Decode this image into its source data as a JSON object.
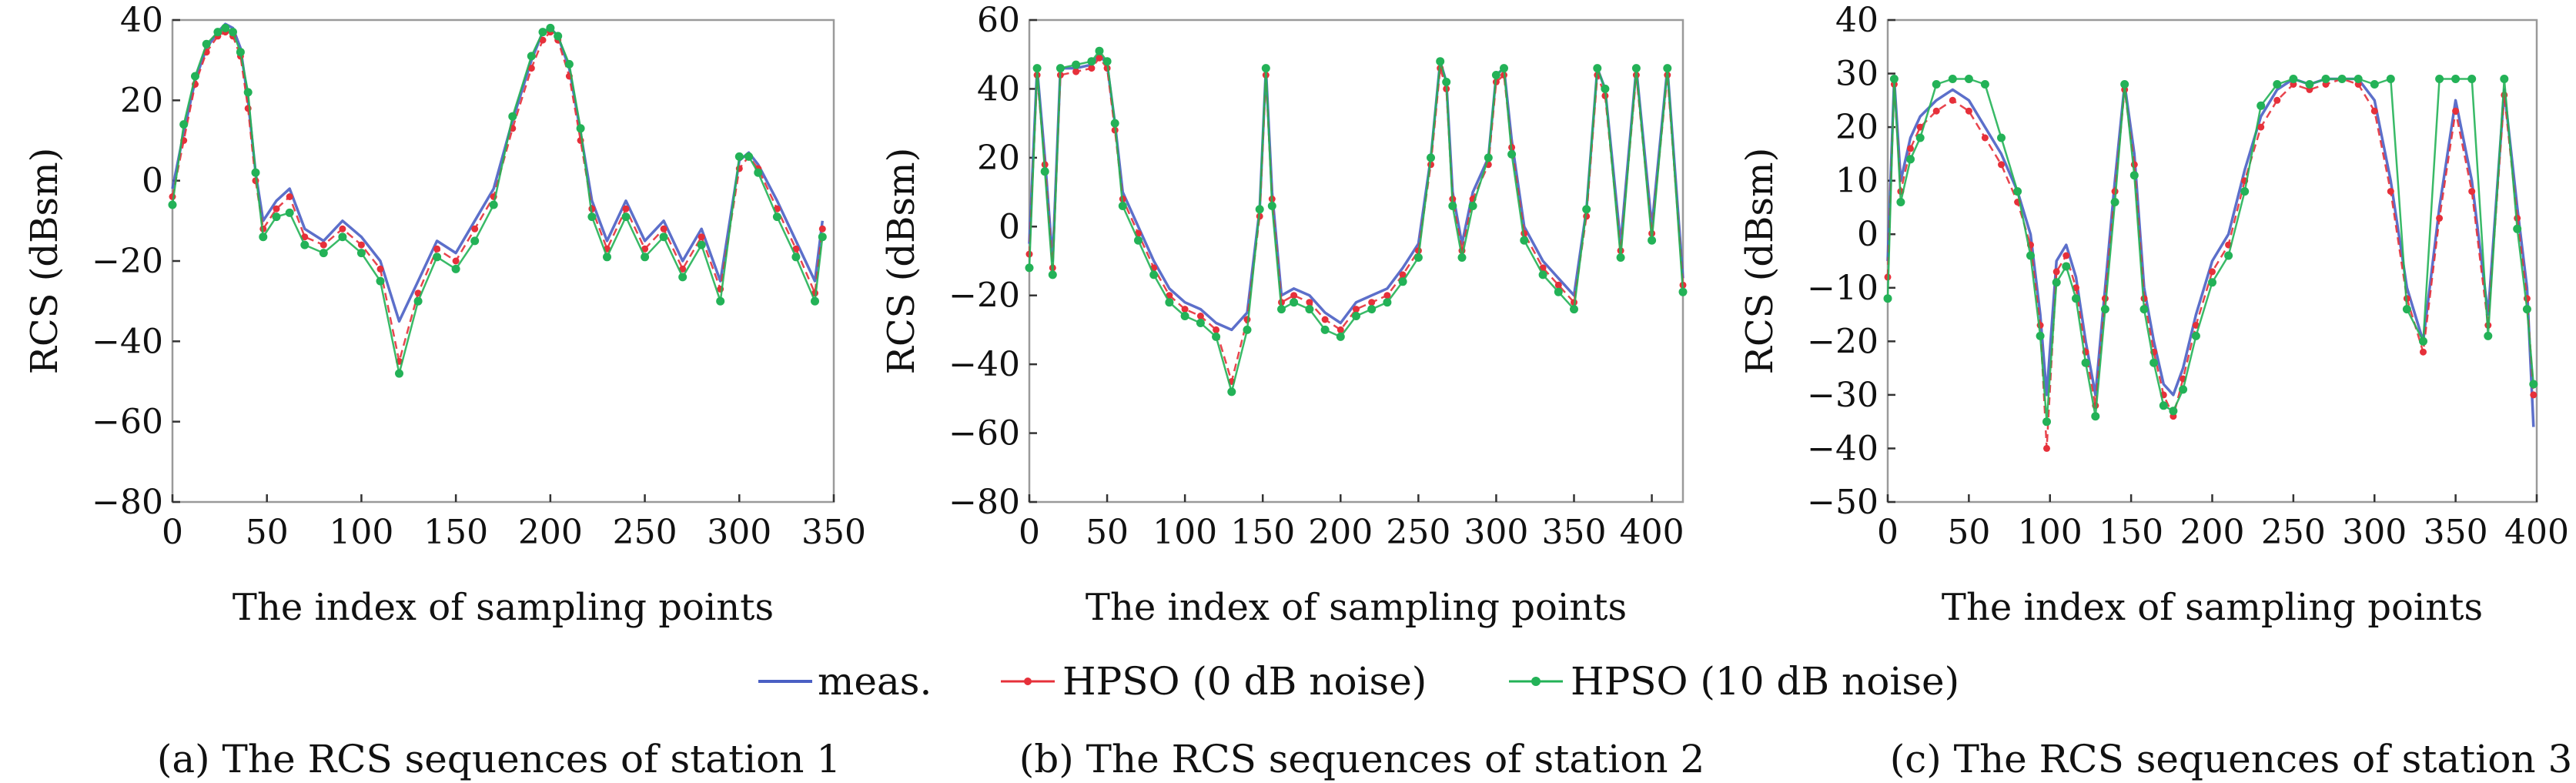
{
  "legend": [
    {
      "name": "meas.",
      "color": "#4a5fc4",
      "marker": "none"
    },
    {
      "name": "HPSO (0 dB noise)",
      "color": "#e6303a",
      "marker": "dot"
    },
    {
      "name": "HPSO (10 dB noise)",
      "color": "#23b257",
      "marker": "plus"
    }
  ],
  "chart_data": [
    {
      "type": "line",
      "caption": "(a) The RCS sequences of station 1",
      "xlabel": "The index of sampling points",
      "ylabel": "RCS (dBsm)",
      "xlim": [
        0,
        350
      ],
      "ylim": [
        -80,
        40
      ],
      "xticks": [
        "0",
        "50",
        "100",
        "150",
        "200",
        "250",
        "300",
        "350"
      ],
      "yticks": [
        "40",
        "20",
        "0",
        "−20",
        "−40",
        "−60",
        "−80"
      ],
      "x_end": 344,
      "series": [
        {
          "name": "meas.",
          "x": [
            0,
            6,
            12,
            18,
            24,
            28,
            32,
            36,
            40,
            44,
            48,
            55,
            62,
            70,
            80,
            90,
            100,
            110,
            120,
            130,
            140,
            150,
            160,
            170,
            180,
            190,
            196,
            200,
            204,
            210,
            216,
            222,
            230,
            240,
            250,
            260,
            270,
            280,
            290,
            300,
            305,
            310,
            320,
            330,
            340,
            344
          ],
          "y": [
            -2,
            12,
            25,
            33,
            37,
            39,
            38,
            33,
            20,
            2,
            -10,
            -5,
            -2,
            -12,
            -15,
            -10,
            -14,
            -20,
            -35,
            -25,
            -15,
            -18,
            -10,
            -2,
            15,
            30,
            37,
            38,
            36,
            28,
            12,
            -5,
            -15,
            -5,
            -15,
            -10,
            -20,
            -12,
            -25,
            5,
            7,
            4,
            -5,
            -15,
            -25,
            -10
          ]
        },
        {
          "name": "HPSO (0 dB noise)",
          "x": [
            0,
            6,
            12,
            18,
            24,
            28,
            32,
            36,
            40,
            44,
            48,
            55,
            62,
            70,
            80,
            90,
            100,
            110,
            120,
            130,
            140,
            150,
            160,
            170,
            180,
            190,
            196,
            200,
            204,
            210,
            216,
            222,
            230,
            240,
            250,
            260,
            270,
            280,
            290,
            300,
            305,
            310,
            320,
            330,
            340,
            344
          ],
          "y": [
            -4,
            10,
            24,
            32,
            36,
            37,
            36,
            31,
            18,
            0,
            -12,
            -7,
            -4,
            -14,
            -16,
            -12,
            -16,
            -22,
            -45,
            -28,
            -17,
            -20,
            -12,
            -4,
            13,
            28,
            35,
            37,
            35,
            26,
            10,
            -7,
            -17,
            -7,
            -17,
            -12,
            -22,
            -14,
            -27,
            3,
            6,
            3,
            -7,
            -17,
            -28,
            -12
          ]
        },
        {
          "name": "HPSO (10 dB noise)",
          "x": [
            0,
            6,
            12,
            18,
            24,
            28,
            32,
            36,
            40,
            44,
            48,
            55,
            62,
            70,
            80,
            90,
            100,
            110,
            120,
            130,
            140,
            150,
            160,
            170,
            180,
            190,
            196,
            200,
            204,
            210,
            216,
            222,
            230,
            240,
            250,
            260,
            270,
            280,
            290,
            300,
            305,
            310,
            320,
            330,
            340,
            344
          ],
          "y": [
            -6,
            14,
            26,
            34,
            37,
            38,
            37,
            32,
            22,
            2,
            -14,
            -9,
            -8,
            -16,
            -18,
            -14,
            -18,
            -25,
            -48,
            -30,
            -19,
            -22,
            -15,
            -6,
            16,
            31,
            37,
            38,
            36,
            29,
            13,
            -9,
            -19,
            -9,
            -19,
            -14,
            -24,
            -16,
            -30,
            6,
            6,
            2,
            -9,
            -19,
            -30,
            -14
          ]
        }
      ]
    },
    {
      "type": "line",
      "caption": "(b) The RCS sequences of station 2",
      "xlabel": "The index of sampling points",
      "ylabel": "RCS (dBsm)",
      "xlim": [
        0,
        420
      ],
      "ylim": [
        -80,
        60
      ],
      "xticks": [
        "0",
        "50",
        "100",
        "150",
        "200",
        "250",
        "300",
        "350",
        "400"
      ],
      "yticks": [
        "60",
        "40",
        "20",
        "0",
        "−20",
        "−40",
        "−60",
        "−80"
      ],
      "x_end": 420,
      "series": [
        {
          "name": "meas.",
          "x": [
            0,
            5,
            10,
            15,
            20,
            30,
            40,
            45,
            50,
            55,
            60,
            70,
            80,
            90,
            100,
            110,
            120,
            130,
            140,
            148,
            152,
            156,
            162,
            170,
            180,
            190,
            200,
            210,
            220,
            230,
            240,
            250,
            258,
            264,
            268,
            272,
            278,
            285,
            295,
            300,
            305,
            310,
            318,
            330,
            340,
            350,
            358,
            365,
            370,
            380,
            390,
            400,
            410,
            420
          ],
          "y": [
            -5,
            46,
            20,
            -10,
            46,
            46,
            47,
            50,
            47,
            30,
            10,
            0,
            -10,
            -18,
            -22,
            -24,
            -28,
            -30,
            -25,
            5,
            46,
            10,
            -20,
            -18,
            -20,
            -25,
            -28,
            -22,
            -20,
            -18,
            -12,
            -5,
            20,
            48,
            42,
            10,
            -5,
            10,
            20,
            44,
            46,
            25,
            0,
            -10,
            -15,
            -20,
            5,
            46,
            40,
            -5,
            46,
            0,
            46,
            -15
          ]
        },
        {
          "name": "HPSO (0 dB noise)",
          "x": [
            0,
            5,
            10,
            15,
            20,
            30,
            40,
            45,
            50,
            55,
            60,
            70,
            80,
            90,
            100,
            110,
            120,
            130,
            140,
            148,
            152,
            156,
            162,
            170,
            180,
            190,
            200,
            210,
            220,
            230,
            240,
            250,
            258,
            264,
            268,
            272,
            278,
            285,
            295,
            300,
            305,
            310,
            318,
            330,
            340,
            350,
            358,
            365,
            370,
            380,
            390,
            400,
            410,
            420
          ],
          "y": [
            -8,
            44,
            18,
            -12,
            44,
            45,
            46,
            49,
            46,
            28,
            8,
            -2,
            -12,
            -20,
            -24,
            -26,
            -30,
            -45,
            -27,
            3,
            44,
            8,
            -22,
            -20,
            -22,
            -27,
            -30,
            -24,
            -22,
            -20,
            -14,
            -7,
            18,
            46,
            40,
            8,
            -7,
            8,
            18,
            42,
            44,
            23,
            -2,
            -12,
            -17,
            -22,
            3,
            44,
            38,
            -7,
            44,
            -2,
            44,
            -17
          ]
        },
        {
          "name": "HPSO (10 dB noise)",
          "x": [
            0,
            5,
            10,
            15,
            20,
            30,
            40,
            45,
            50,
            55,
            60,
            70,
            80,
            90,
            100,
            110,
            120,
            130,
            140,
            148,
            152,
            156,
            162,
            170,
            180,
            190,
            200,
            210,
            220,
            230,
            240,
            250,
            258,
            264,
            268,
            272,
            278,
            285,
            295,
            300,
            305,
            310,
            318,
            330,
            340,
            350,
            358,
            365,
            370,
            380,
            390,
            400,
            410,
            420
          ],
          "y": [
            -12,
            46,
            16,
            -14,
            46,
            47,
            48,
            51,
            48,
            30,
            6,
            -4,
            -14,
            -22,
            -26,
            -28,
            -32,
            -48,
            -30,
            5,
            46,
            6,
            -24,
            -22,
            -24,
            -30,
            -32,
            -26,
            -24,
            -22,
            -16,
            -9,
            20,
            48,
            42,
            6,
            -9,
            6,
            20,
            44,
            46,
            21,
            -4,
            -14,
            -19,
            -24,
            5,
            46,
            40,
            -9,
            46,
            -4,
            46,
            -19
          ]
        }
      ]
    },
    {
      "type": "line",
      "caption": "(c) The RCS sequences of station 3",
      "xlabel": "The index of sampling points",
      "ylabel": "RCS (dBsm)",
      "xlim": [
        0,
        400
      ],
      "ylim": [
        -50,
        40
      ],
      "xticks": [
        "0",
        "50",
        "100",
        "150",
        "200",
        "250",
        "300",
        "350",
        "400"
      ],
      "yticks": [
        "40",
        "30",
        "20",
        "10",
        "0",
        "−10",
        "−20",
        "−30",
        "−40",
        "−50"
      ],
      "x_end": 398,
      "series": [
        {
          "name": "meas.",
          "x": [
            0,
            4,
            8,
            14,
            20,
            30,
            40,
            50,
            60,
            70,
            80,
            88,
            94,
            98,
            104,
            110,
            116,
            122,
            128,
            134,
            140,
            146,
            152,
            158,
            164,
            170,
            176,
            182,
            190,
            200,
            210,
            220,
            230,
            240,
            250,
            260,
            270,
            280,
            290,
            300,
            310,
            320,
            330,
            340,
            350,
            360,
            370,
            380,
            388,
            394,
            398
          ],
          "y": [
            -5,
            29,
            10,
            18,
            22,
            25,
            27,
            25,
            20,
            15,
            8,
            0,
            -15,
            -30,
            -5,
            -2,
            -8,
            -20,
            -30,
            -10,
            10,
            28,
            15,
            -10,
            -20,
            -28,
            -30,
            -25,
            -15,
            -5,
            0,
            12,
            22,
            27,
            29,
            28,
            29,
            29,
            29,
            25,
            10,
            -10,
            -20,
            5,
            25,
            10,
            -15,
            27,
            5,
            -10,
            -36
          ]
        },
        {
          "name": "HPSO (0 dB noise)",
          "x": [
            0,
            4,
            8,
            14,
            20,
            30,
            40,
            50,
            60,
            70,
            80,
            88,
            94,
            98,
            104,
            110,
            116,
            122,
            128,
            134,
            140,
            146,
            152,
            158,
            164,
            170,
            176,
            182,
            190,
            200,
            210,
            220,
            230,
            240,
            250,
            260,
            270,
            280,
            290,
            300,
            310,
            320,
            330,
            340,
            350,
            360,
            370,
            380,
            388,
            394,
            398
          ],
          "y": [
            -8,
            28,
            8,
            16,
            20,
            23,
            25,
            23,
            18,
            13,
            6,
            -2,
            -17,
            -40,
            -7,
            -4,
            -10,
            -22,
            -32,
            -12,
            8,
            27,
            13,
            -12,
            -22,
            -30,
            -34,
            -27,
            -17,
            -7,
            -2,
            10,
            20,
            25,
            28,
            27,
            28,
            29,
            28,
            23,
            8,
            -12,
            -22,
            3,
            23,
            8,
            -17,
            26,
            3,
            -12,
            -30
          ]
        },
        {
          "name": "HPSO (10 dB noise)",
          "x": [
            0,
            4,
            8,
            14,
            20,
            30,
            40,
            50,
            60,
            70,
            80,
            88,
            94,
            98,
            104,
            110,
            116,
            122,
            128,
            134,
            140,
            146,
            152,
            158,
            164,
            170,
            176,
            182,
            190,
            200,
            210,
            220,
            230,
            240,
            250,
            260,
            270,
            280,
            290,
            300,
            310,
            320,
            330,
            340,
            350,
            360,
            370,
            380,
            388,
            394,
            398
          ],
          "y": [
            -12,
            29,
            6,
            14,
            18,
            28,
            29,
            29,
            28,
            18,
            8,
            -4,
            -19,
            -35,
            -9,
            -6,
            -12,
            -24,
            -34,
            -14,
            6,
            28,
            11,
            -14,
            -24,
            -32,
            -33,
            -29,
            -19,
            -9,
            -4,
            8,
            24,
            28,
            29,
            28,
            29,
            29,
            29,
            28,
            29,
            -14,
            -20,
            29,
            29,
            29,
            -19,
            29,
            1,
            -14,
            -28
          ]
        }
      ]
    }
  ]
}
